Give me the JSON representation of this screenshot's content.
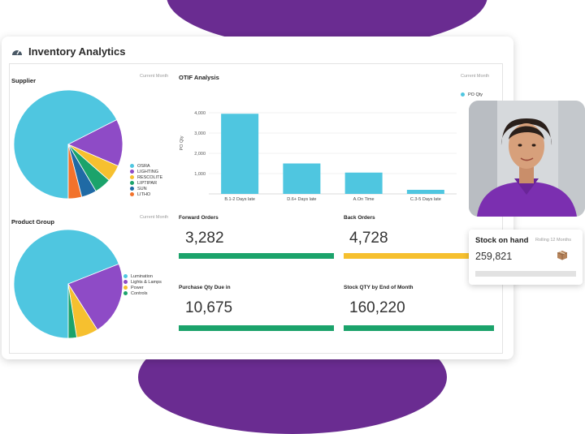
{
  "app": {
    "title": "Inventory Analytics"
  },
  "colors": {
    "accent": "#6a2c91",
    "bar": "#4fc6e0",
    "green": "#1ba36b",
    "yellow": "#f6c02f",
    "track": "#e2e2e2"
  },
  "supplier": {
    "title": "Supplier",
    "period": "Current Month",
    "legend": [
      "OSRA",
      "LIGHTING",
      "RESCOLITE",
      "LIPTIPAR",
      "SUN",
      "LITHO"
    ],
    "legend_colors": [
      "#4fc6e0",
      "#8e4bc6",
      "#f6c02f",
      "#1ba36b",
      "#1f6aa5",
      "#f2722b"
    ]
  },
  "otif": {
    "title": "OTIF Analysis",
    "period": "Current Month",
    "legend": "PO Qty",
    "ylabel": "PO Qty"
  },
  "product_group": {
    "title": "Product Group",
    "period": "Current Month",
    "legend": [
      "Lumination",
      "Lights & Lamps",
      "Power",
      "Controls"
    ],
    "legend_colors": [
      "#4fc6e0",
      "#8e4bc6",
      "#f6c02f",
      "#1ba36b"
    ]
  },
  "kpis": {
    "forward_orders": {
      "label": "Forward Orders",
      "value": "3,282"
    },
    "back_orders": {
      "label": "Back Orders",
      "value": "4,728"
    },
    "purchase_qty": {
      "label": "Purchase Qty Due in",
      "value": "10,675"
    },
    "stock_qty": {
      "label": "Stock QTY by End of Month",
      "value": "160,220"
    }
  },
  "stock_on_hand": {
    "title": "Stock on hand",
    "period": "Rolling 12 Months",
    "value": "259,821",
    "icon": "box-icon"
  },
  "chart_data": [
    {
      "type": "pie",
      "title": "Supplier",
      "labels": [
        "OSRA",
        "LIGHTING",
        "RESCOLITE",
        "LIPTIPAR",
        "SUN",
        "LITHO"
      ],
      "values": [
        67.5,
        14,
        5,
        5,
        4.5,
        4
      ]
    },
    {
      "type": "bar",
      "title": "OTIF Analysis",
      "categories": [
        "B.1-2 Days late",
        "D.6+ Days late",
        "A.On Time",
        "C.3-5 Days late"
      ],
      "series": [
        {
          "name": "PO Qty",
          "values": [
            3950,
            1500,
            1050,
            200
          ]
        }
      ],
      "ylabel": "PO Qty",
      "yticks": [
        "1,000",
        "2,000",
        "3,000",
        "4,000"
      ],
      "ylim": [
        0,
        5000
      ],
      "grid": true,
      "legend": "top-right"
    },
    {
      "type": "pie",
      "title": "Product Group",
      "labels": [
        "Lumination",
        "Lights & Lamps",
        "Power",
        "Controls"
      ],
      "values": [
        69,
        22,
        6.5,
        2.5
      ]
    }
  ]
}
